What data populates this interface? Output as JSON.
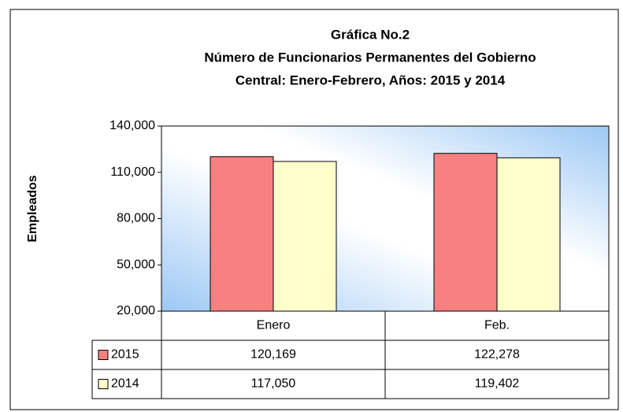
{
  "chart_data": {
    "type": "bar",
    "title": [
      "Gráfica No.2",
      "Número de Funcionarios Permanentes del Gobierno",
      "Central: Enero-Febrero, Años: 2015 y 2014"
    ],
    "y_label": "Empleados",
    "categories": [
      "Enero",
      "Feb."
    ],
    "series": [
      {
        "name": "2015",
        "color": "#f88080",
        "values": [
          120169,
          122278
        ],
        "value_labels": [
          "120,169",
          "122,278"
        ]
      },
      {
        "name": "2014",
        "color": "#ffffcc",
        "values": [
          117050,
          119402
        ],
        "value_labels": [
          "117,050",
          "119,402"
        ]
      }
    ],
    "ylim": [
      20000,
      140000
    ],
    "yticks": [
      {
        "value": 20000,
        "label": "20,000"
      },
      {
        "value": 50000,
        "label": "50,000"
      },
      {
        "value": 80000,
        "label": "80,000"
      },
      {
        "value": 110000,
        "label": "110,000"
      },
      {
        "value": 140000,
        "label": "140,000"
      }
    ],
    "data_table": true
  }
}
